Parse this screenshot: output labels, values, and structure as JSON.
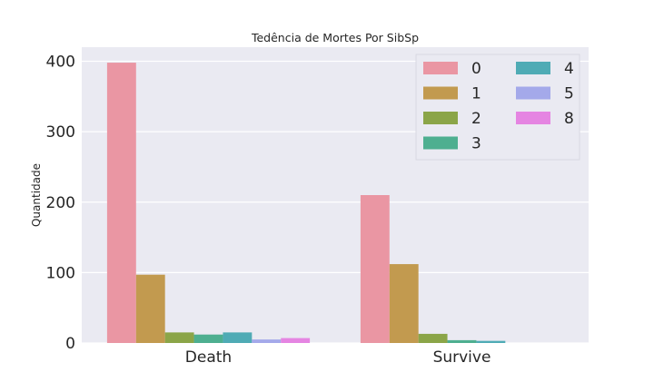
{
  "chart_data": {
    "type": "bar",
    "title": "Tedência de Mortes Por SibSp",
    "xlabel": "",
    "ylabel": "Quantidade",
    "categories": [
      "Death",
      "Survive"
    ],
    "yticks": [
      0,
      100,
      200,
      300,
      400
    ],
    "ylim": [
      0,
      420
    ],
    "grid": true,
    "legend_position": "top-right",
    "series": [
      {
        "name": "0",
        "color": "#EA96A3",
        "values": [
          398,
          210
        ]
      },
      {
        "name": "1",
        "color": "#C29A4F",
        "values": [
          97,
          112
        ]
      },
      {
        "name": "2",
        "color": "#8BA548",
        "values": [
          15,
          13
        ]
      },
      {
        "name": "3",
        "color": "#4EAF90",
        "values": [
          12,
          4
        ]
      },
      {
        "name": "4",
        "color": "#4FABB5",
        "values": [
          15,
          3
        ]
      },
      {
        "name": "5",
        "color": "#A4A9EA",
        "values": [
          5,
          0
        ]
      },
      {
        "name": "8",
        "color": "#E585E2",
        "values": [
          7,
          0
        ]
      }
    ]
  }
}
